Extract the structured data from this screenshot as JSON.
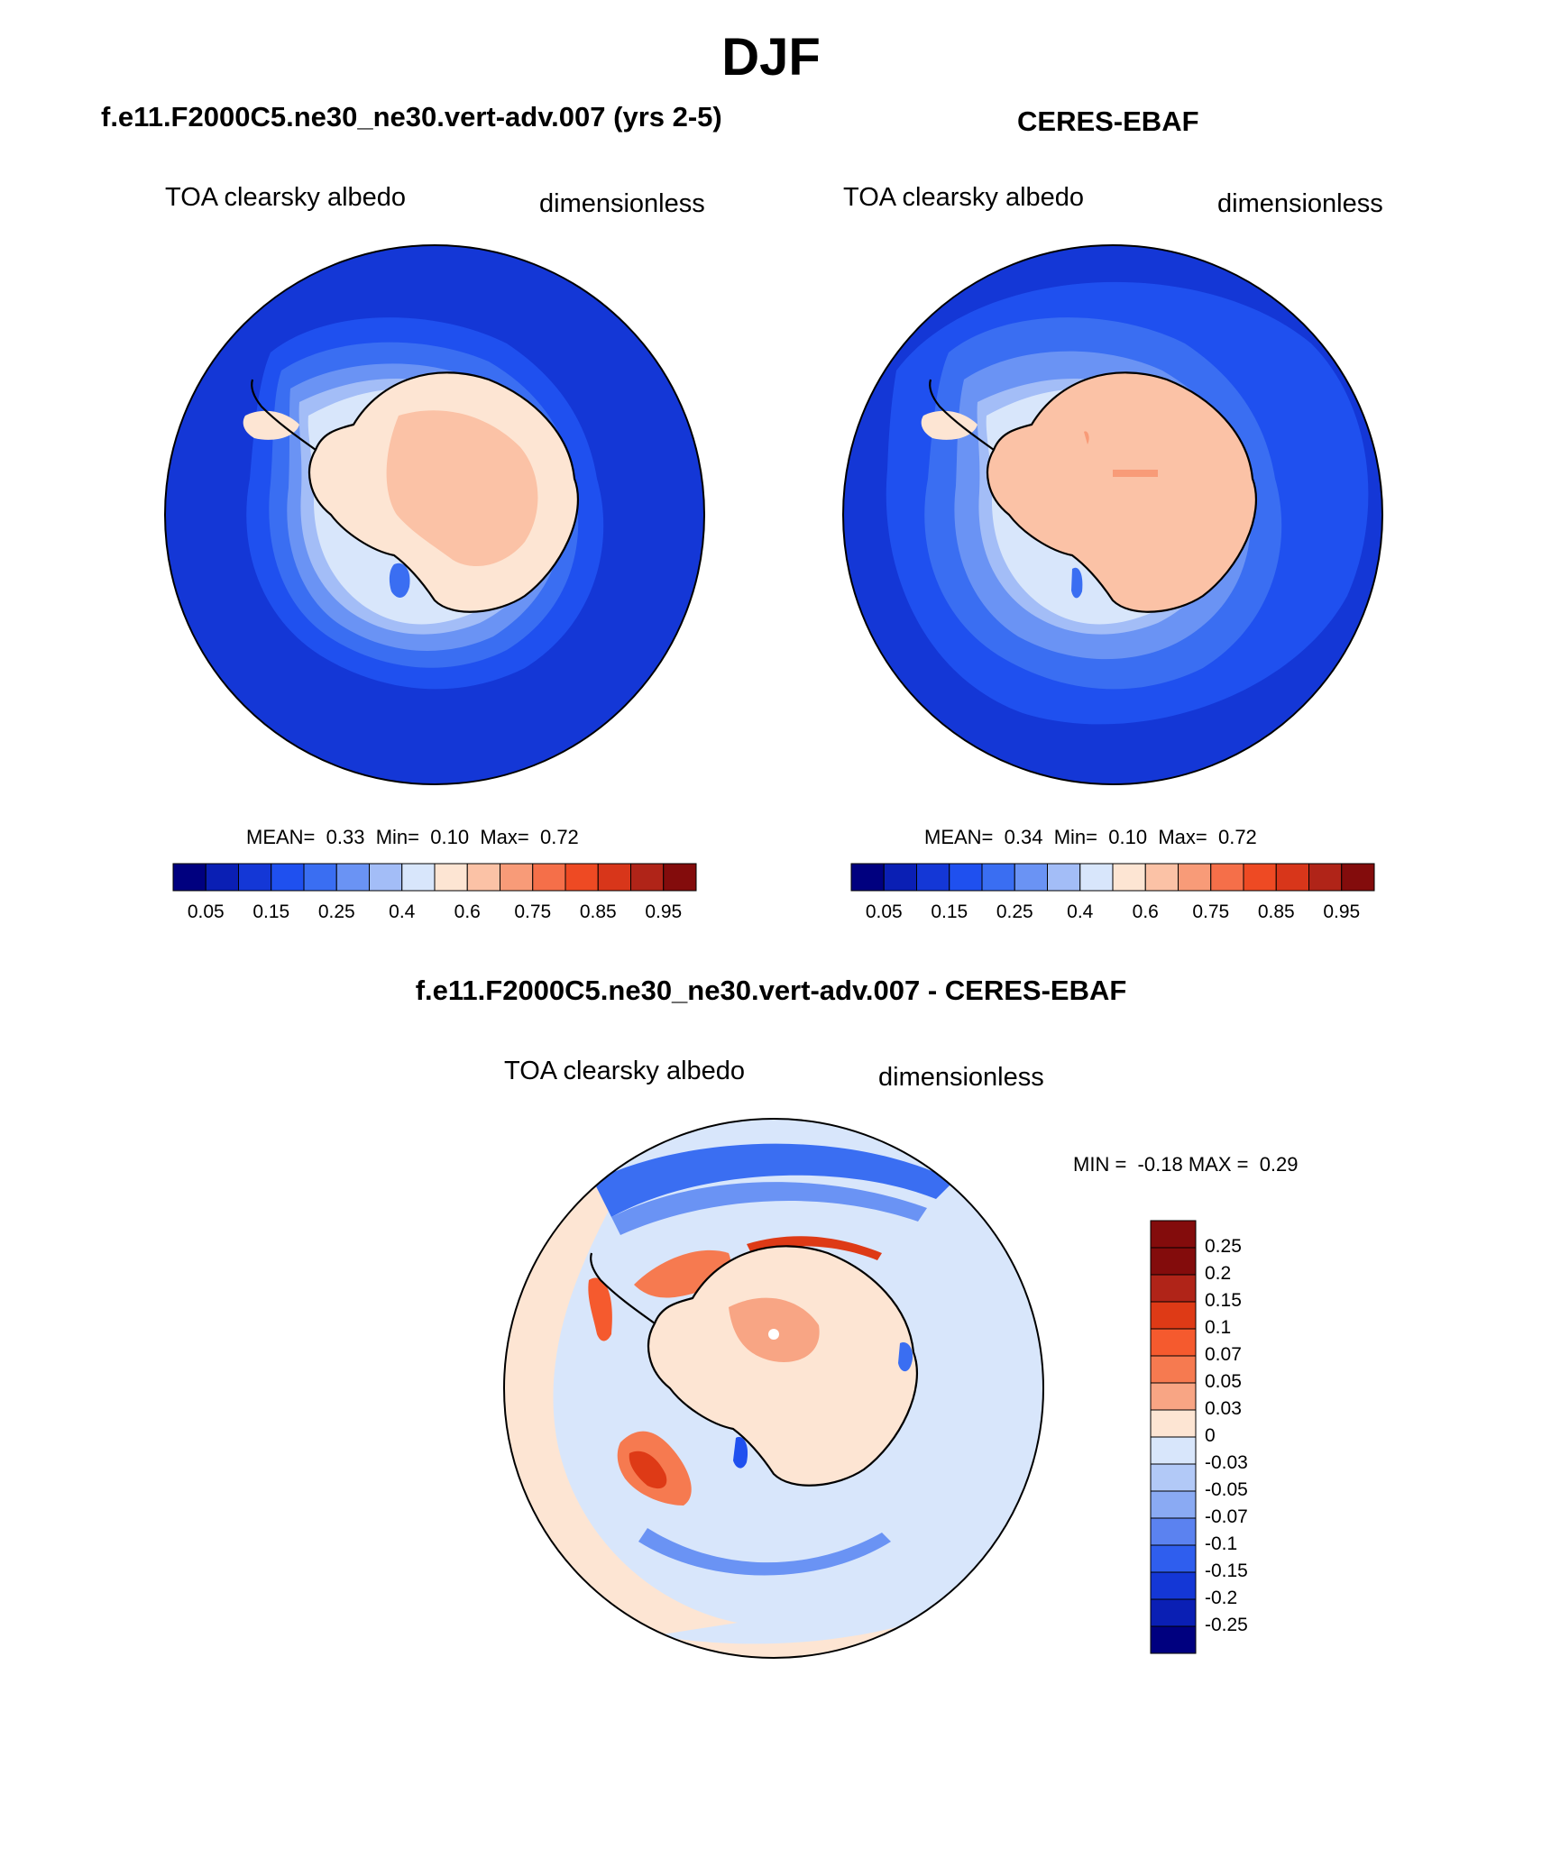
{
  "season": "DJF",
  "panels": [
    {
      "id": "model",
      "title": "f.e11.F2000C5.ne30_ne30.vert-adv.007 (yrs 2-5)",
      "variable": "TOA clearsky albedo",
      "units": "dimensionless",
      "stats": {
        "mean_label": "MEAN=",
        "mean": "0.33",
        "min_label": "Min=",
        "min": "0.10",
        "max_label": "Max=",
        "max": "0.72"
      }
    },
    {
      "id": "obs",
      "title": "CERES-EBAF",
      "variable": "TOA clearsky albedo",
      "units": "dimensionless",
      "stats": {
        "mean_label": "MEAN=",
        "mean": "0.34",
        "min_label": "Min=",
        "min": "0.10",
        "max_label": "Max=",
        "max": "0.72"
      }
    },
    {
      "id": "diff",
      "title": "f.e11.F2000C5.ne30_ne30.vert-adv.007 - CERES-EBAF",
      "variable": "TOA clearsky albedo",
      "units": "dimensionless",
      "stats": {
        "min_label": "MIN =",
        "min": "-0.18",
        "max_label": "MAX =",
        "max": "0.29"
      }
    }
  ],
  "colorbars": {
    "albedo": {
      "colors": [
        "#00007f",
        "#0a1fb4",
        "#1437d6",
        "#1f50ef",
        "#3a6ef2",
        "#6a93f4",
        "#a3bdf7",
        "#d8e6fb",
        "#fde5d3",
        "#fbc2a6",
        "#f89b78",
        "#f56f49",
        "#ee4a23",
        "#d8361a",
        "#b02418",
        "#830c0c"
      ],
      "labels": [
        "0.05",
        "0.15",
        "0.25",
        "0.4",
        "0.6",
        "0.75",
        "0.85",
        "0.95"
      ]
    },
    "difference": {
      "colors": [
        "#830c0c",
        "#b02418",
        "#de3a16",
        "#f55a2e",
        "#f67a50",
        "#f8a584",
        "#fde5d3",
        "#d8e6fb",
        "#b2c9f7",
        "#8aaaf3",
        "#5b82f0",
        "#2f5eee",
        "#1437d6",
        "#0a1fb4",
        "#00007f"
      ],
      "labels": [
        "0.25",
        "0.2",
        "0.15",
        "0.1",
        "0.07",
        "0.05",
        "0.03",
        "0",
        "-0.03",
        "-0.05",
        "-0.07",
        "-0.1",
        "-0.15",
        "-0.2",
        "-0.25"
      ]
    }
  }
}
